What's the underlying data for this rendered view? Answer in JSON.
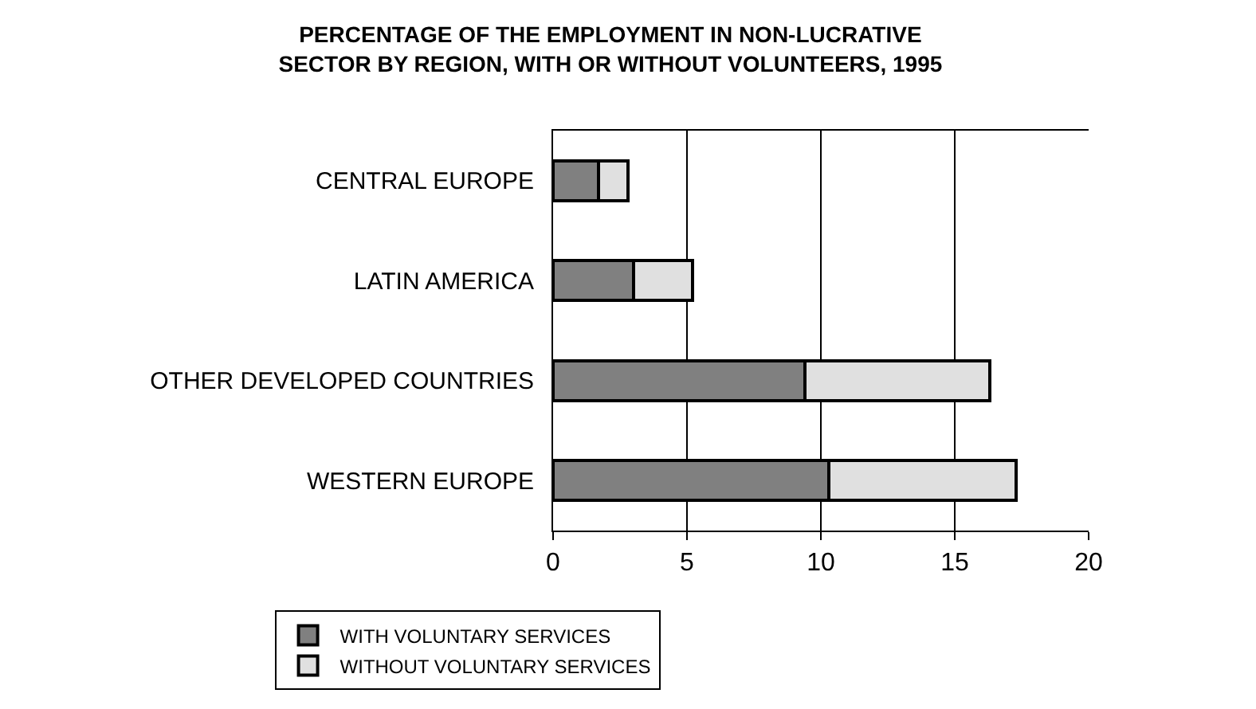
{
  "chart_data": {
    "type": "bar",
    "orientation": "horizontal",
    "stacked": true,
    "title": "PERCENTAGE OF THE EMPLOYMENT IN NON-LUCRATIVE\nSECTOR BY REGION, WITH OR WITHOUT VOLUNTEERS, 1995",
    "categories": [
      "CENTRAL EUROPE",
      "LATIN AMERICA",
      "OTHER DEVELOPED COUNTRIES",
      "WESTERN EUROPE"
    ],
    "series": [
      {
        "name": "WITH VOLUNTARY SERVICES",
        "color": "#808080",
        "values": [
          1.7,
          3.0,
          9.4,
          10.3
        ]
      },
      {
        "name": "WITHOUT VOLUNTARY SERVICES",
        "color": "#e0e0e0",
        "values": [
          1.1,
          2.2,
          6.9,
          7.0
        ]
      }
    ],
    "xlim": [
      0,
      20
    ],
    "xticks": [
      0,
      5,
      10,
      15,
      20
    ],
    "grid": "x",
    "legend": "bottom left"
  }
}
